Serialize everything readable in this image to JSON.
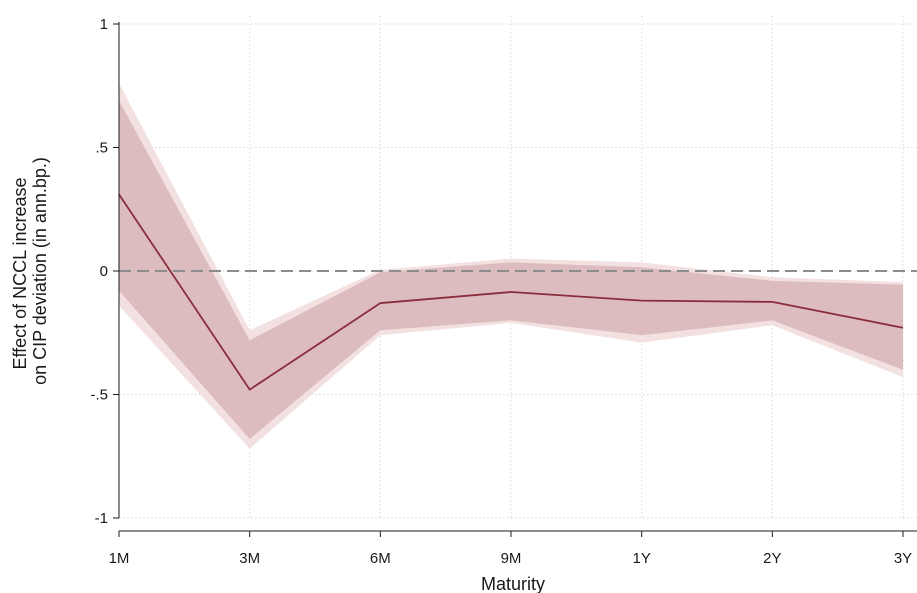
{
  "chart_data": {
    "type": "line",
    "categories": [
      "1M",
      "3M",
      "6M",
      "9M",
      "1Y",
      "2Y",
      "3Y"
    ],
    "series": [
      {
        "values": [
          0.31,
          -0.48,
          -0.13,
          -0.085,
          -0.12,
          -0.125,
          -0.23
        ],
        "color": "#8b2e3c"
      }
    ],
    "bands": [
      {
        "lower": [
          -0.14,
          -0.72,
          -0.26,
          -0.21,
          -0.29,
          -0.22,
          -0.43
        ],
        "upper": [
          0.76,
          -0.24,
          0.005,
          0.05,
          0.035,
          -0.025,
          -0.045
        ],
        "color": "#f3e1e1"
      },
      {
        "lower": [
          -0.08,
          -0.68,
          -0.24,
          -0.2,
          -0.26,
          -0.2,
          -0.4
        ],
        "upper": [
          0.69,
          -0.28,
          -0.005,
          0.035,
          0.015,
          -0.04,
          -0.055
        ],
        "color": "#dcbcbf"
      }
    ],
    "reference_line": {
      "y": 0,
      "style": "dashed",
      "color": "#8c8c8c"
    },
    "xlabel": "Maturity",
    "ylabel": [
      "Effect of NCCL increase",
      "on CIP deviation (in ann.bp.)"
    ],
    "ylim": [
      -1,
      1
    ],
    "yticks": [
      {
        "value": -1,
        "label": "-1"
      },
      {
        "value": -0.5,
        "label": "-.5"
      },
      {
        "value": 0,
        "label": "0"
      },
      {
        "value": 0.5,
        "label": ".5"
      },
      {
        "value": 1,
        "label": "1"
      }
    ],
    "grid": true
  }
}
